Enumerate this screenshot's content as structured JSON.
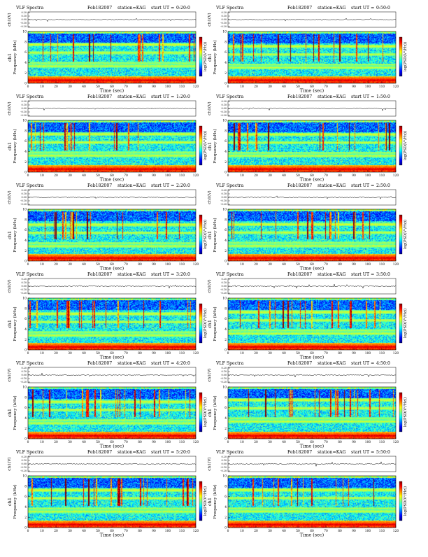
{
  "panel_common": {
    "prefix": "VLF Spectra",
    "date": "Feb182007",
    "station": "station=KAG",
    "start_label": "start UT =",
    "top_ylabel": "ch1(V)",
    "main_ylabel": "Frequency (kHz)",
    "ch_label": "ch1",
    "xlabel": "Time (sec)",
    "colorbar_label": "log(PSD(V²/Hz))"
  },
  "chart_data": [
    {
      "type": "heatmap",
      "ut": "0:20:0",
      "xlabel": "Time (sec)",
      "ylabel": "Frequency (kHz)",
      "xlim": [
        0,
        120
      ],
      "ylim": [
        0,
        10
      ],
      "x_ticks": [
        0,
        10,
        20,
        30,
        40,
        50,
        60,
        70,
        80,
        90,
        100,
        110,
        120
      ],
      "y_ticks": [
        0,
        2,
        4,
        6,
        8,
        10
      ],
      "top_y_ticks": [
        "0.20",
        "0.10",
        "0.00",
        "-0.10",
        "-0.20"
      ]
    },
    {
      "type": "heatmap",
      "ut": "0:50:0",
      "xlabel": "Time (sec)",
      "ylabel": "Frequency (kHz)",
      "xlim": [
        0,
        120
      ],
      "ylim": [
        0,
        10
      ],
      "x_ticks": [
        0,
        10,
        20,
        30,
        40,
        50,
        60,
        70,
        80,
        90,
        100,
        110,
        120
      ],
      "y_ticks": [
        0,
        2,
        4,
        6,
        8,
        10
      ],
      "top_y_ticks": [
        "0.20",
        "0.10",
        "0.00",
        "-0.10",
        "-0.20"
      ]
    },
    {
      "type": "heatmap",
      "ut": "1:20:0",
      "xlabel": "Time (sec)",
      "ylabel": "Frequency (kHz)",
      "xlim": [
        0,
        120
      ],
      "ylim": [
        0,
        10
      ],
      "x_ticks": [
        0,
        10,
        20,
        30,
        40,
        50,
        60,
        70,
        80,
        90,
        100,
        110,
        120
      ],
      "y_ticks": [
        0,
        2,
        4,
        6,
        8,
        10
      ],
      "top_y_ticks": [
        "0.20",
        "0.10",
        "0.00",
        "-0.10",
        "-0.20"
      ]
    },
    {
      "type": "heatmap",
      "ut": "1:50:0",
      "xlabel": "Time (sec)",
      "ylabel": "Frequency (kHz)",
      "xlim": [
        0,
        120
      ],
      "ylim": [
        0,
        10
      ],
      "x_ticks": [
        0,
        10,
        20,
        30,
        40,
        50,
        60,
        70,
        80,
        90,
        100,
        110,
        120
      ],
      "y_ticks": [
        0,
        2,
        4,
        6,
        8,
        10
      ],
      "top_y_ticks": [
        "0.20",
        "0.10",
        "0.00",
        "-0.10",
        "-0.20"
      ]
    },
    {
      "type": "heatmap",
      "ut": "2:20:0",
      "xlabel": "Time (sec)",
      "ylabel": "Frequency (kHz)",
      "xlim": [
        0,
        120
      ],
      "ylim": [
        0,
        10
      ],
      "x_ticks": [
        0,
        10,
        20,
        30,
        40,
        50,
        60,
        70,
        80,
        90,
        100,
        110,
        120
      ],
      "y_ticks": [
        0,
        2,
        4,
        6,
        8,
        10
      ],
      "top_y_ticks": [
        "0.20",
        "0.10",
        "0.00",
        "-0.10",
        "-0.20"
      ]
    },
    {
      "type": "heatmap",
      "ut": "2:50:0",
      "xlabel": "Time (sec)",
      "ylabel": "Frequency (kHz)",
      "xlim": [
        0,
        120
      ],
      "ylim": [
        0,
        10
      ],
      "x_ticks": [
        0,
        10,
        20,
        30,
        40,
        50,
        60,
        70,
        80,
        90,
        100,
        110,
        120
      ],
      "y_ticks": [
        0,
        2,
        4,
        6,
        8,
        10
      ],
      "top_y_ticks": [
        "0.20",
        "0.10",
        "0.00",
        "-0.10",
        "-0.20"
      ]
    },
    {
      "type": "heatmap",
      "ut": "3:20:0",
      "xlabel": "Time (sec)",
      "ylabel": "Frequency (kHz)",
      "xlim": [
        0,
        120
      ],
      "ylim": [
        0,
        10
      ],
      "x_ticks": [
        0,
        10,
        20,
        30,
        40,
        50,
        60,
        70,
        80,
        90,
        100,
        110,
        120
      ],
      "y_ticks": [
        0,
        2,
        4,
        6,
        8,
        10
      ],
      "top_y_ticks": [
        "0.20",
        "0.10",
        "0.00",
        "-0.10",
        "-0.20"
      ]
    },
    {
      "type": "heatmap",
      "ut": "3:50:0",
      "xlabel": "Time (sec)",
      "ylabel": "Frequency (kHz)",
      "xlim": [
        0,
        120
      ],
      "ylim": [
        0,
        10
      ],
      "x_ticks": [
        0,
        10,
        20,
        30,
        40,
        50,
        60,
        70,
        80,
        90,
        100,
        110,
        120
      ],
      "y_ticks": [
        0,
        2,
        4,
        6,
        8,
        10
      ],
      "top_y_ticks": [
        "0.20",
        "0.10",
        "0.00",
        "-0.10",
        "-0.20"
      ]
    },
    {
      "type": "heatmap",
      "ut": "4:20:0",
      "xlabel": "Time (sec)",
      "ylabel": "Frequency (kHz)",
      "xlim": [
        0,
        120
      ],
      "ylim": [
        0,
        10
      ],
      "x_ticks": [
        0,
        10,
        20,
        30,
        40,
        50,
        60,
        70,
        80,
        90,
        100,
        110,
        120
      ],
      "y_ticks": [
        0,
        2,
        4,
        6,
        8,
        10
      ],
      "top_y_ticks": [
        "0.20",
        "0.10",
        "0.00",
        "-0.10",
        "-0.20"
      ]
    },
    {
      "type": "heatmap",
      "ut": "4:50:0",
      "xlabel": "Time (sec)",
      "ylabel": "Frequency (kHz)",
      "xlim": [
        0,
        120
      ],
      "ylim": [
        0,
        10
      ],
      "x_ticks": [
        0,
        10,
        20,
        30,
        40,
        50,
        60,
        70,
        80,
        90,
        100,
        110,
        120
      ],
      "y_ticks": [
        0,
        2,
        4,
        6,
        8,
        10
      ],
      "top_y_ticks": [
        "0.20",
        "0.10",
        "0.00",
        "-0.10",
        "-0.20"
      ]
    },
    {
      "type": "heatmap",
      "ut": "5:20:0",
      "xlabel": "Time (sec)",
      "ylabel": "Frequency (kHz)",
      "xlim": [
        0,
        120
      ],
      "ylim": [
        0,
        10
      ],
      "x_ticks": [
        0,
        10,
        20,
        30,
        40,
        50,
        60,
        70,
        80,
        90,
        100,
        110,
        120
      ],
      "y_ticks": [
        0,
        2,
        4,
        6,
        8,
        10
      ],
      "top_y_ticks": [
        "0.20",
        "0.10",
        "0.00",
        "-0.10",
        "-0.20"
      ]
    },
    {
      "type": "heatmap",
      "ut": "5:50:0",
      "xlabel": "Time (sec)",
      "ylabel": "Frequency (kHz)",
      "xlim": [
        0,
        120
      ],
      "ylim": [
        0,
        10
      ],
      "x_ticks": [
        0,
        10,
        20,
        30,
        40,
        50,
        60,
        70,
        80,
        90,
        100,
        110,
        120
      ],
      "y_ticks": [
        0,
        2,
        4,
        6,
        8,
        10
      ],
      "top_y_ticks": [
        "0.20",
        "0.10",
        "0.00",
        "-0.10",
        "-0.20"
      ]
    }
  ],
  "colormap": [
    "#00007f",
    "#0000ff",
    "#007fff",
    "#00ffff",
    "#7fff7f",
    "#ffff00",
    "#ff7f00",
    "#ff0000",
    "#7f0000"
  ]
}
